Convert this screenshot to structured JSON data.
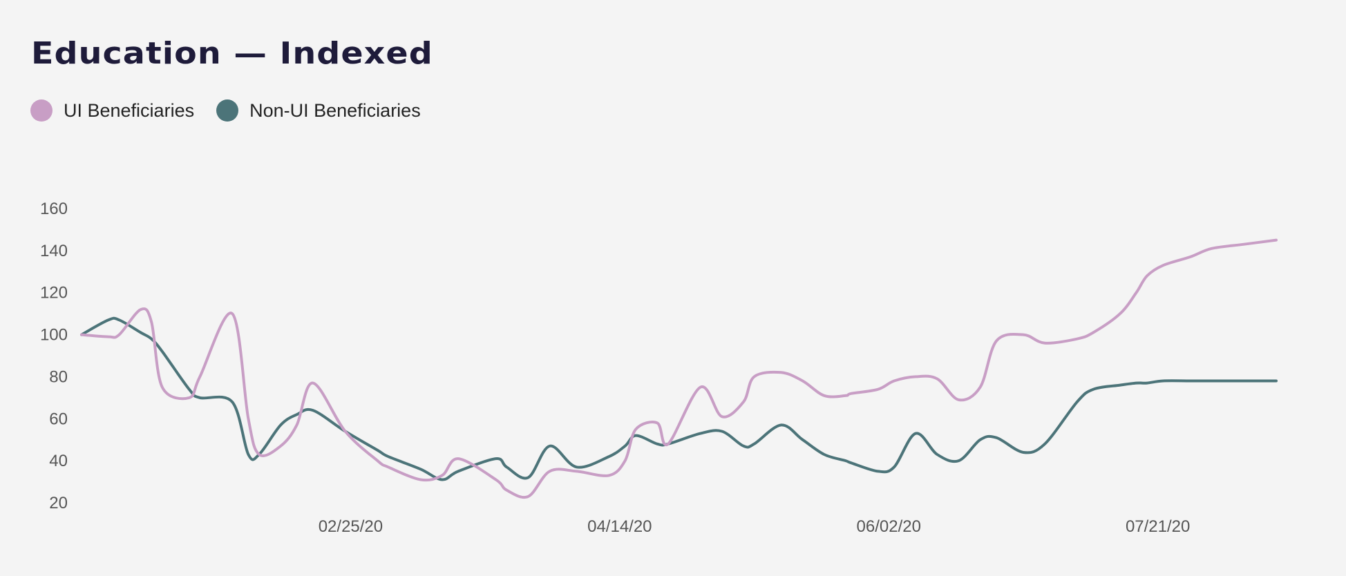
{
  "chart_data": {
    "type": "line",
    "title": "Education — Indexed",
    "xlabel": "",
    "ylabel": "",
    "grid": false,
    "legend_position": "top-left",
    "ylim": [
      20,
      160
    ],
    "yticks": [
      20,
      40,
      60,
      80,
      100,
      120,
      140,
      160
    ],
    "xlim": [
      0,
      222
    ],
    "x_axis_kind": "weekly dates, 2020",
    "xticks": [
      {
        "x": 50,
        "label": "02/25/20"
      },
      {
        "x": 100,
        "label": "04/14/20"
      },
      {
        "x": 150,
        "label": "06/02/20"
      },
      {
        "x": 200,
        "label": "07/21/20"
      }
    ],
    "x": [
      0,
      5,
      7,
      11,
      13,
      15,
      20,
      22,
      28,
      31,
      33,
      37,
      40,
      43,
      49,
      55,
      57,
      63,
      67,
      70,
      77,
      79,
      83,
      87,
      92,
      98,
      101,
      103,
      107,
      109,
      115,
      119,
      123,
      125,
      130,
      134,
      138,
      142,
      143,
      148,
      151,
      155,
      159,
      163,
      167,
      170,
      175,
      179,
      185,
      188,
      193,
      196,
      198,
      201,
      206,
      210,
      216,
      222
    ],
    "series": [
      {
        "name": "UI Beneficiaries",
        "color": "#c89ec5",
        "values": [
          100,
          99,
          100,
          112,
          106,
          75,
          70,
          80,
          110,
          60,
          43,
          47,
          57,
          77,
          54,
          40,
          37,
          31,
          33,
          41,
          31,
          26,
          23,
          35,
          35,
          33,
          40,
          55,
          58,
          48,
          75,
          61,
          68,
          80,
          82,
          78,
          71,
          71,
          72,
          74,
          78,
          80,
          79,
          69,
          75,
          97,
          100,
          96,
          98,
          101,
          110,
          120,
          128,
          133,
          137,
          141,
          143,
          145
        ]
      },
      {
        "name": "Non-UI Beneficiaries",
        "color": "#4c7479",
        "values": [
          100,
          107,
          107,
          101,
          98,
          92,
          74,
          70,
          68,
          43,
          43,
          57,
          62,
          64,
          54,
          45,
          42,
          36,
          31,
          35,
          41,
          37,
          32,
          47,
          37,
          42,
          47,
          52,
          48,
          48,
          53,
          54,
          47,
          48,
          57,
          50,
          43,
          40,
          39,
          35,
          37,
          53,
          43,
          40,
          50,
          51,
          44,
          48,
          68,
          74,
          76,
          77,
          77,
          78,
          78,
          78,
          78,
          78
        ]
      }
    ]
  }
}
